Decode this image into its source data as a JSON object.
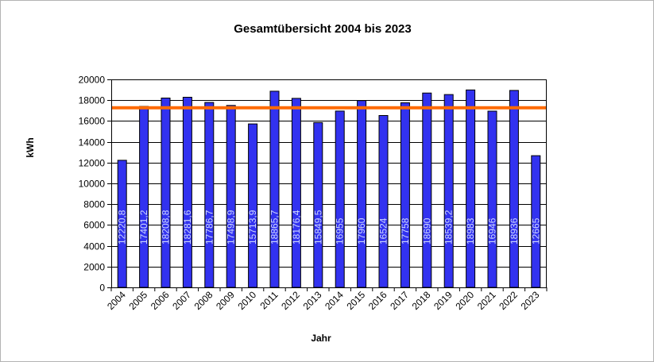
{
  "chart_data": {
    "type": "bar",
    "title": "Gesamtübersicht 2004 bis 2023",
    "xlabel": "Jahr",
    "ylabel": "kWh",
    "ylim": [
      0,
      20000
    ],
    "ytick_step": 2000,
    "yticks": [
      "0",
      "2000",
      "4000",
      "6000",
      "8000",
      "10000",
      "12000",
      "14000",
      "16000",
      "18000",
      "20000"
    ],
    "grid": true,
    "categories": [
      "2004",
      "2005",
      "2006",
      "2007",
      "2008",
      "2009",
      "2010",
      "2011",
      "2012",
      "2013",
      "2014",
      "2015",
      "2016",
      "2017",
      "2018",
      "2019",
      "2020",
      "2021",
      "2022",
      "2023"
    ],
    "values": [
      12220.8,
      17401.2,
      18208.8,
      18281.6,
      17786.7,
      17498.9,
      15713.9,
      18865.7,
      18176.4,
      15849.5,
      16955,
      17960,
      16524,
      17758,
      18690,
      18539.2,
      18983,
      16946,
      18936,
      12665
    ],
    "data_labels": [
      "12220,8",
      "17401,2",
      "18208,8",
      "18281,6",
      "17786,7",
      "17498,9",
      "15713,9",
      "18865,7",
      "18176,4",
      "15849,5",
      "16955",
      "17960",
      "16524",
      "17758",
      "18690",
      "18539,2",
      "18983",
      "16946",
      "18936",
      "12665"
    ],
    "average_line": {
      "value": 17270
    },
    "colors": {
      "bar": "#3232f0",
      "bar_stroke": "#000000",
      "average_line": "#ff6a00",
      "label_text": "#cfd8ff",
      "grid": "#000000"
    }
  }
}
